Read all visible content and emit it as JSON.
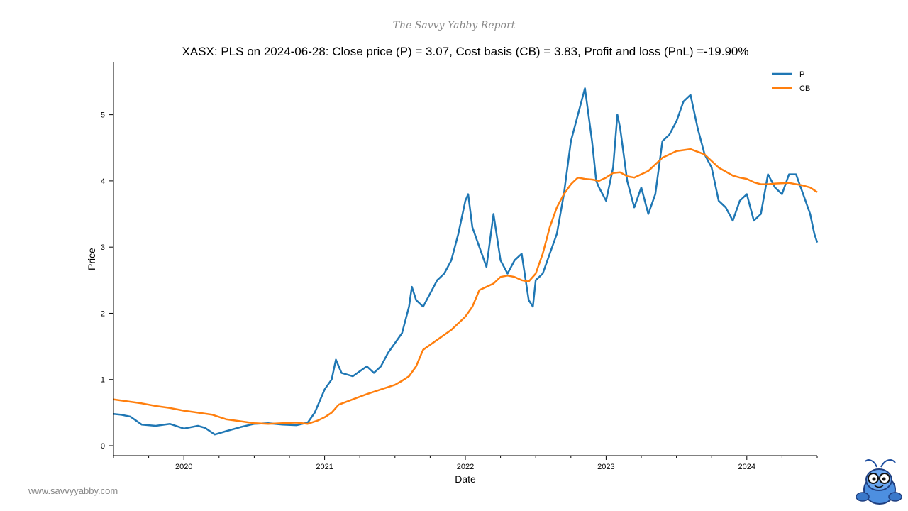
{
  "branding": {
    "report_title": "The Savvy Yabby Report",
    "website": "www.savvyyabby.com",
    "logo_icon": "yabby-mascot-icon"
  },
  "chart_data": {
    "type": "line",
    "title": "XASX: PLS on 2024-06-28: Close price (P) = 3.07, Cost basis (CB) = 3.83, Profit and loss (PnL) =-19.90%",
    "xlabel": "Date",
    "ylabel": "Price",
    "xlim": [
      2019.5,
      2024.5
    ],
    "ylim": [
      -0.15,
      5.8
    ],
    "x_ticks": [
      2020,
      2021,
      2022,
      2023,
      2024
    ],
    "x_tick_labels": [
      "2020",
      "2021",
      "2022",
      "2023",
      "2024"
    ],
    "y_ticks": [
      0,
      1,
      2,
      3,
      4,
      5
    ],
    "y_tick_labels": [
      "0",
      "1",
      "2",
      "3",
      "4",
      "5"
    ],
    "legend_position": "top-right",
    "grid": false,
    "series": [
      {
        "name": "P",
        "color": "#1f77b4",
        "x": [
          2019.5,
          2019.55,
          2019.62,
          2019.7,
          2019.8,
          2019.9,
          2020.0,
          2020.1,
          2020.15,
          2020.22,
          2020.3,
          2020.4,
          2020.5,
          2020.6,
          2020.7,
          2020.8,
          2020.88,
          2020.93,
          2021.0,
          2021.05,
          2021.08,
          2021.12,
          2021.2,
          2021.3,
          2021.35,
          2021.4,
          2021.45,
          2021.5,
          2021.55,
          2021.6,
          2021.62,
          2021.65,
          2021.7,
          2021.75,
          2021.8,
          2021.85,
          2021.9,
          2021.95,
          2022.0,
          2022.02,
          2022.05,
          2022.1,
          2022.15,
          2022.2,
          2022.25,
          2022.3,
          2022.35,
          2022.4,
          2022.45,
          2022.48,
          2022.5,
          2022.55,
          2022.6,
          2022.65,
          2022.7,
          2022.75,
          2022.8,
          2022.85,
          2022.9,
          2022.93,
          2022.95,
          2023.0,
          2023.05,
          2023.08,
          2023.1,
          2023.15,
          2023.2,
          2023.25,
          2023.3,
          2023.35,
          2023.4,
          2023.45,
          2023.5,
          2023.55,
          2023.6,
          2023.65,
          2023.7,
          2023.75,
          2023.8,
          2023.85,
          2023.9,
          2023.95,
          2024.0,
          2024.05,
          2024.1,
          2024.15,
          2024.2,
          2024.25,
          2024.3,
          2024.35,
          2024.4,
          2024.45,
          2024.48,
          2024.5
        ],
        "y": [
          0.48,
          0.47,
          0.44,
          0.32,
          0.3,
          0.33,
          0.26,
          0.3,
          0.27,
          0.17,
          0.22,
          0.28,
          0.33,
          0.34,
          0.32,
          0.31,
          0.35,
          0.5,
          0.85,
          1.0,
          1.3,
          1.1,
          1.05,
          1.2,
          1.1,
          1.2,
          1.4,
          1.55,
          1.7,
          2.1,
          2.4,
          2.2,
          2.1,
          2.3,
          2.5,
          2.6,
          2.8,
          3.2,
          3.7,
          3.8,
          3.3,
          3.0,
          2.7,
          3.5,
          2.8,
          2.6,
          2.8,
          2.9,
          2.2,
          2.1,
          2.5,
          2.6,
          2.9,
          3.2,
          3.8,
          4.6,
          5.0,
          5.4,
          4.6,
          4.0,
          3.9,
          3.7,
          4.2,
          5.0,
          4.8,
          4.0,
          3.6,
          3.9,
          3.5,
          3.8,
          4.6,
          4.7,
          4.9,
          5.2,
          5.3,
          4.8,
          4.4,
          4.2,
          3.7,
          3.6,
          3.4,
          3.7,
          3.8,
          3.4,
          3.5,
          4.1,
          3.9,
          3.8,
          4.1,
          4.1,
          3.8,
          3.5,
          3.2,
          3.07
        ]
      },
      {
        "name": "CB",
        "color": "#ff7f0e",
        "x": [
          2019.5,
          2019.6,
          2019.7,
          2019.8,
          2019.9,
          2020.0,
          2020.1,
          2020.2,
          2020.3,
          2020.4,
          2020.5,
          2020.6,
          2020.7,
          2020.8,
          2020.88,
          2020.95,
          2021.0,
          2021.05,
          2021.1,
          2021.2,
          2021.3,
          2021.4,
          2021.5,
          2021.55,
          2021.6,
          2021.65,
          2021.7,
          2021.8,
          2021.9,
          2022.0,
          2022.05,
          2022.1,
          2022.2,
          2022.25,
          2022.3,
          2022.35,
          2022.4,
          2022.45,
          2022.5,
          2022.55,
          2022.6,
          2022.65,
          2022.7,
          2022.75,
          2022.8,
          2022.85,
          2022.9,
          2022.95,
          2023.0,
          2023.05,
          2023.1,
          2023.15,
          2023.2,
          2023.3,
          2023.4,
          2023.5,
          2023.6,
          2023.7,
          2023.75,
          2023.8,
          2023.9,
          2023.95,
          2024.0,
          2024.05,
          2024.1,
          2024.15,
          2024.2,
          2024.3,
          2024.4,
          2024.45,
          2024.5
        ],
        "y": [
          0.7,
          0.67,
          0.64,
          0.6,
          0.57,
          0.53,
          0.5,
          0.47,
          0.4,
          0.37,
          0.34,
          0.33,
          0.34,
          0.35,
          0.33,
          0.38,
          0.43,
          0.5,
          0.62,
          0.7,
          0.78,
          0.85,
          0.92,
          0.98,
          1.05,
          1.2,
          1.45,
          1.6,
          1.75,
          1.95,
          2.1,
          2.35,
          2.45,
          2.55,
          2.57,
          2.55,
          2.5,
          2.48,
          2.6,
          2.9,
          3.3,
          3.6,
          3.8,
          3.95,
          4.05,
          4.03,
          4.02,
          4.0,
          4.05,
          4.12,
          4.13,
          4.07,
          4.05,
          4.15,
          4.35,
          4.45,
          4.48,
          4.4,
          4.3,
          4.2,
          4.08,
          4.05,
          4.03,
          3.98,
          3.95,
          3.95,
          3.96,
          3.97,
          3.93,
          3.9,
          3.83
        ]
      }
    ]
  }
}
